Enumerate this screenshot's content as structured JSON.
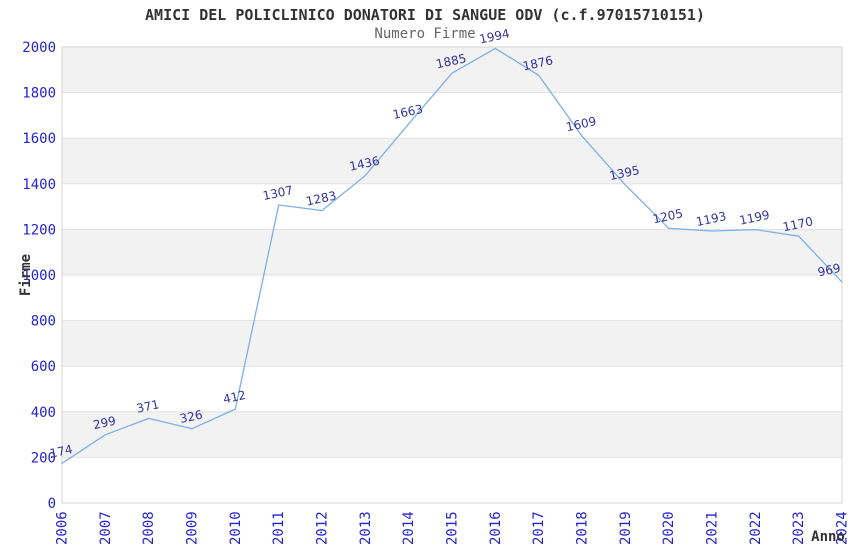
{
  "header": {
    "title": "AMICI DEL POLICLINICO DONATORI DI SANGUE ODV (c.f.97015710151)",
    "subtitle": "Numero Firme"
  },
  "chart_data": {
    "type": "line",
    "title": "AMICI DEL POLICLINICO DONATORI DI SANGUE ODV (c.f.97015710151)",
    "subtitle": "Numero Firme",
    "xlabel": "Anno",
    "ylabel": "Firme",
    "categories": [
      "2006",
      "2007",
      "2008",
      "2009",
      "2010",
      "2011",
      "2012",
      "2013",
      "2014",
      "2015",
      "2016",
      "2017",
      "2018",
      "2019",
      "2020",
      "2021",
      "2022",
      "2023",
      "2024"
    ],
    "values": [
      174,
      299,
      371,
      326,
      412,
      1307,
      1283,
      1436,
      1663,
      1885,
      1994,
      1876,
      1609,
      1395,
      1205,
      1193,
      1199,
      1170,
      969
    ],
    "ylim": [
      0,
      2000
    ],
    "ytick_interval": 200,
    "yticks": [
      0,
      200,
      400,
      600,
      800,
      1000,
      1200,
      1400,
      1600,
      1800,
      2000
    ],
    "grid": "alternating-horizontal-bands",
    "legend": "none",
    "point_labels_visible": true,
    "colors": {
      "line": "#7cb0e8",
      "tick_label": "#2424cc",
      "point_label": "#333399",
      "band_gray": "#f2f2f2",
      "band_white": "#ffffff",
      "gridline": "#e2e2e2",
      "plot_border": "#d4d4d4",
      "title": "#333333",
      "subtitle": "#666666",
      "axis_title": "#333333",
      "background": "#ffffff"
    }
  }
}
